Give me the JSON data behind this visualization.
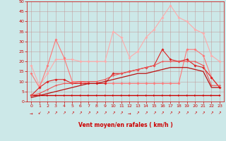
{
  "xlabel": "Vent moyen/en rafales ( km/h )",
  "xlim": [
    -0.5,
    23.5
  ],
  "ylim": [
    0,
    50
  ],
  "yticks": [
    0,
    5,
    10,
    15,
    20,
    25,
    30,
    35,
    40,
    45,
    50
  ],
  "xticks": [
    0,
    1,
    2,
    3,
    4,
    5,
    6,
    7,
    8,
    9,
    10,
    11,
    12,
    13,
    14,
    15,
    16,
    17,
    18,
    19,
    20,
    21,
    22,
    23
  ],
  "bg_color": "#cce8e8",
  "grid_color": "#c09090",
  "axis_color": "#cc0000",
  "light_salmon": "#ffaaaa",
  "medium_salmon": "#ff7777",
  "dark_red": "#cc0000",
  "red": "#dd2222",
  "line1_y": [
    18,
    8,
    14,
    21,
    21,
    21,
    20,
    20,
    20,
    20,
    35,
    32,
    22,
    25,
    32,
    36,
    42,
    48,
    42,
    40,
    36,
    34,
    23,
    20
  ],
  "line2_y": [
    14,
    7,
    18,
    31,
    22,
    10,
    10,
    9,
    9,
    9,
    9,
    9,
    9,
    9,
    9,
    9,
    9,
    9,
    9,
    26,
    26,
    23,
    12,
    7
  ],
  "line3_smooth_y": [
    3,
    3,
    3,
    3,
    3,
    3,
    3,
    3,
    3,
    3,
    3,
    3,
    3,
    3,
    3,
    3,
    3,
    3,
    3,
    3,
    3,
    3,
    3,
    3
  ],
  "line4_y": [
    3,
    7,
    10,
    11,
    11,
    9,
    9,
    9,
    9,
    9,
    14,
    14,
    15,
    16,
    17,
    18,
    26,
    21,
    20,
    21,
    18,
    17,
    12,
    7
  ],
  "line5_y": [
    3,
    4,
    6,
    8,
    9,
    9,
    10,
    10,
    10,
    11,
    13,
    14,
    15,
    16,
    17,
    18,
    20,
    20,
    20,
    20,
    20,
    18,
    8,
    8
  ],
  "line6_y": [
    2,
    3,
    4,
    5,
    6,
    7,
    8,
    9,
    9,
    10,
    11,
    12,
    13,
    14,
    14,
    15,
    16,
    17,
    17,
    17,
    16,
    15,
    7,
    7
  ],
  "arrows": [
    "→",
    "↙",
    "↗",
    "↗",
    "↗",
    "↗",
    "↗",
    "↗",
    "↗",
    "↗",
    "↗",
    "↗",
    "→",
    "↗",
    "↗",
    "↗",
    "↗",
    "↗",
    "↗",
    "↗",
    "↗",
    "↗",
    "↗",
    "↗"
  ]
}
